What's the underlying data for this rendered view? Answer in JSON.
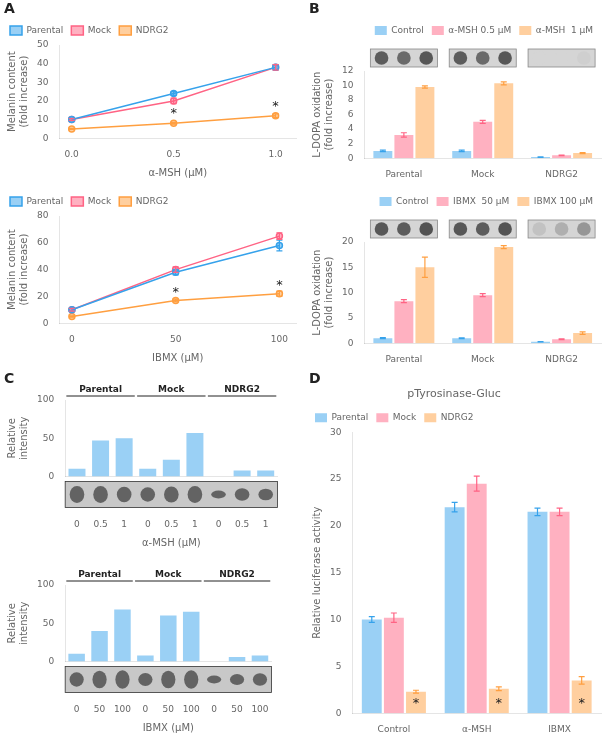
{
  "chart_data": [
    {
      "type": "line",
      "annotations": [
        {
          "text": "A"
        },
        {
          "text": "*",
          "x": 0.5,
          "y": 9.5
        },
        {
          "text": "*",
          "x": 1.0,
          "y": 13.5
        }
      ],
      "xlabel": "α-MSH (μM)",
      "ylabel": "Melanin content\n(fold increase)",
      "x": [
        0,
        0.5,
        1
      ],
      "series": [
        {
          "name": "Parental",
          "values": [
            10,
            24,
            38
          ],
          "errors": [
            0.5,
            1.0,
            1.5
          ]
        },
        {
          "name": "Mock",
          "values": [
            10,
            20,
            38
          ],
          "errors": [
            0.5,
            1.5,
            1.5
          ]
        },
        {
          "name": "NDRG2",
          "values": [
            5,
            8,
            12
          ],
          "errors": [
            0.3,
            0.5,
            1.0
          ]
        }
      ],
      "xlim": [
        -0.06,
        1.1
      ],
      "xticks": [
        {
          "value": 0,
          "label": "0.0"
        },
        {
          "value": 0.5,
          "label": "0.5"
        },
        {
          "value": 1,
          "label": "1.0"
        }
      ],
      "ylim": [
        0,
        50
      ],
      "yticks": [
        0,
        10,
        20,
        30,
        40,
        50
      ],
      "grid": false,
      "legend": "upper left"
    },
    {
      "type": "line",
      "annotations": [
        {
          "text": "*",
          "x": 50,
          "y": 18
        },
        {
          "text": "*",
          "x": 100,
          "y": 23.5
        }
      ],
      "xlabel": "IBMX (μM)",
      "ylabel": "Melanin content\n(fold increase)",
      "x": [
        0,
        50,
        100
      ],
      "series": [
        {
          "name": "Parental",
          "values": [
            10,
            38,
            58
          ],
          "errors": [
            1.0,
            2.0,
            4.0
          ]
        },
        {
          "name": "Mock",
          "values": [
            10,
            40,
            65
          ],
          "errors": [
            1.0,
            2.0,
            2.5
          ]
        },
        {
          "name": "NDRG2",
          "values": [
            5,
            17,
            22
          ],
          "errors": [
            0.5,
            1.0,
            2.0
          ]
        }
      ],
      "xlim": [
        -6,
        108
      ],
      "xticks": [
        0,
        50,
        100
      ],
      "ylim": [
        0,
        80
      ],
      "yticks": [
        0,
        20,
        40,
        60,
        80
      ],
      "grid": false,
      "legend": "upper left"
    },
    {
      "type": "bar",
      "annotations": [
        {
          "text": "B"
        }
      ],
      "ylabel": "L-DOPA oxidation\n(fold increase)",
      "categories": [
        "Parental",
        "Mock",
        "NDRG2"
      ],
      "series": [
        {
          "name": "Control",
          "values": [
            1.0,
            1.0,
            0.15
          ],
          "errors": [
            0.1,
            0.1,
            0.03
          ]
        },
        {
          "name": "α-MSH 0.5 μM",
          "values": [
            3.2,
            5.0,
            0.4
          ],
          "errors": [
            0.3,
            0.2,
            0.04
          ]
        },
        {
          "name": "α-MSH  1 μM",
          "values": [
            9.8,
            10.3,
            0.7
          ],
          "errors": [
            0.15,
            0.2,
            0.08
          ]
        }
      ],
      "ylim": [
        0,
        12
      ],
      "yticks": [
        0,
        2,
        4,
        6,
        8,
        10,
        12
      ],
      "grid": false,
      "legend": "upper right",
      "dot_intensities": [
        [
          0.85,
          0.78,
          0.88
        ],
        [
          0.85,
          0.78,
          0.88
        ],
        [
          0.22,
          0.22,
          0.25
        ]
      ]
    },
    {
      "type": "bar",
      "ylabel": "L-DOPA oxidation\n(fold increase)",
      "categories": [
        "Parental",
        "Mock",
        "NDRG2"
      ],
      "series": [
        {
          "name": "Control",
          "values": [
            1.0,
            1.0,
            0.3
          ],
          "errors": [
            0.1,
            0.08,
            0.04
          ]
        },
        {
          "name": "IBMX  50 μM",
          "values": [
            8.3,
            9.5,
            0.8
          ],
          "errors": [
            0.3,
            0.3,
            0.08
          ]
        },
        {
          "name": "IBMX 100 μM",
          "values": [
            15.0,
            19.0,
            2.0
          ],
          "errors": [
            2.0,
            0.3,
            0.25
          ]
        }
      ],
      "ylim": [
        0,
        20
      ],
      "yticks": [
        0,
        5,
        10,
        15,
        20
      ],
      "grid": false,
      "legend": "upper right",
      "dot_intensities": [
        [
          0.88,
          0.85,
          0.9
        ],
        [
          0.88,
          0.85,
          0.9
        ],
        [
          0.32,
          0.42,
          0.55
        ]
      ]
    },
    {
      "type": "bar",
      "annotations": [
        {
          "text": "C"
        }
      ],
      "categories": [
        "0",
        "0.5",
        "1",
        "0",
        "0.5",
        "1",
        "0",
        "0.5",
        "1"
      ],
      "values": [
        10,
        47,
        50,
        10,
        22,
        57,
        0,
        8,
        8
      ],
      "groups": [
        "Parental",
        "Mock",
        "NDRG2"
      ],
      "xlabel": "α-MSH (μM)",
      "ylabel": "Relative\nintensity",
      "ylim": [
        0,
        100
      ],
      "yticks": [
        0,
        50,
        100
      ],
      "grid": false,
      "blot_bands": [
        0.65,
        0.65,
        0.6,
        0.55,
        0.62,
        0.65,
        0.3,
        0.48,
        0.45
      ]
    },
    {
      "type": "bar",
      "categories": [
        "0",
        "50",
        "100",
        "0",
        "50",
        "100",
        "0",
        "50",
        "100"
      ],
      "values": [
        10,
        40,
        68,
        8,
        60,
        65,
        0,
        6,
        8
      ],
      "groups": [
        "Parental",
        "Mock",
        "NDRG2"
      ],
      "xlabel": "IBMX (μM)",
      "ylabel": "Relative\nintensity",
      "ylim": [
        0,
        100
      ],
      "yticks": [
        0,
        50,
        100
      ],
      "grid": false,
      "blot_bands": [
        0.55,
        0.68,
        0.72,
        0.5,
        0.68,
        0.72,
        0.3,
        0.42,
        0.48
      ]
    },
    {
      "type": "bar",
      "title": "pTyrosinase-Gluc",
      "annotations": [
        {
          "text": "D"
        },
        {
          "text": "*",
          "x": "Control",
          "series": "NDRG2",
          "y": 0.3
        },
        {
          "text": "*",
          "x": "α-MSH",
          "series": "NDRG2",
          "y": 0.3
        },
        {
          "text": "*",
          "x": "IBMX",
          "series": "NDRG2",
          "y": 0.3
        }
      ],
      "ylabel": "Relative luciferase activity",
      "categories": [
        "Control",
        "α-MSH",
        "IBMX"
      ],
      "series": [
        {
          "name": "Parental",
          "values": [
            10.0,
            22.0,
            21.5
          ],
          "errors": [
            0.3,
            0.5,
            0.4
          ]
        },
        {
          "name": "Mock",
          "values": [
            10.2,
            24.5,
            21.5
          ],
          "errors": [
            0.5,
            0.8,
            0.4
          ]
        },
        {
          "name": "NDRG2",
          "values": [
            2.3,
            2.6,
            3.5
          ],
          "errors": [
            0.15,
            0.2,
            0.4
          ]
        }
      ],
      "ylim": [
        0,
        30
      ],
      "yticks": [
        0,
        5,
        10,
        15,
        20,
        25,
        30
      ],
      "grid": false,
      "legend": "upper left"
    }
  ]
}
